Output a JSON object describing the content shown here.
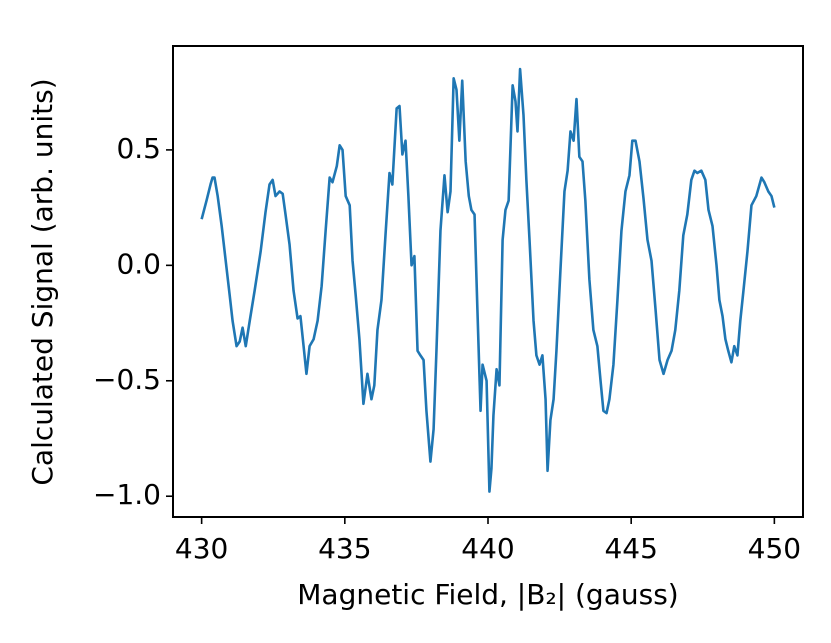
{
  "chart_data": {
    "type": "line",
    "xlabel": "Magnetic Field, |B₂| (gauss)",
    "ylabel": "Calculated Signal (arb. units)",
    "color": "#1f77b4",
    "grid": false,
    "xlim": [
      429,
      451
    ],
    "ylim": [
      -1.09,
      0.95
    ],
    "xticks": [
      430,
      435,
      440,
      445,
      450
    ],
    "yticks": [
      {
        "value": -1.0,
        "label": "−1.0"
      },
      {
        "value": -0.5,
        "label": "−0.5"
      },
      {
        "value": 0.0,
        "label": "0.0"
      },
      0.5
    ],
    "x": [
      430.0,
      430.17,
      430.31,
      430.38,
      430.45,
      430.56,
      430.7,
      430.84,
      430.98,
      431.08,
      431.22,
      431.33,
      431.43,
      431.54,
      431.68,
      431.85,
      432.06,
      432.23,
      432.37,
      432.48,
      432.58,
      432.72,
      432.83,
      432.93,
      433.07,
      433.21,
      433.35,
      433.45,
      433.56,
      433.66,
      433.77,
      433.91,
      434.05,
      434.19,
      434.33,
      434.47,
      434.57,
      434.72,
      434.82,
      434.92,
      435.03,
      435.17,
      435.27,
      435.38,
      435.51,
      435.65,
      435.79,
      435.93,
      436.03,
      436.14,
      436.28,
      436.42,
      436.56,
      436.66,
      436.81,
      436.91,
      437.01,
      437.12,
      437.22,
      437.33,
      437.43,
      437.54,
      437.64,
      437.75,
      437.85,
      437.99,
      438.1,
      438.2,
      438.34,
      438.48,
      438.59,
      438.69,
      438.8,
      438.9,
      439.0,
      439.1,
      439.22,
      439.33,
      439.42,
      439.53,
      439.63,
      439.74,
      439.81,
      439.95,
      440.05,
      440.12,
      440.19,
      440.3,
      440.4,
      440.51,
      440.61,
      440.72,
      440.86,
      440.96,
      441.03,
      441.12,
      441.24,
      441.34,
      441.45,
      441.59,
      441.69,
      441.8,
      441.9,
      442.01,
      442.08,
      442.18,
      442.29,
      442.39,
      442.53,
      442.67,
      442.78,
      442.88,
      442.99,
      443.09,
      443.19,
      443.3,
      443.4,
      443.54,
      443.68,
      443.82,
      443.93,
      444.03,
      444.14,
      444.24,
      444.38,
      444.52,
      444.66,
      444.8,
      444.94,
      445.04,
      445.15,
      445.29,
      445.43,
      445.57,
      445.71,
      445.85,
      445.99,
      446.13,
      446.27,
      446.41,
      446.54,
      446.68,
      446.82,
      446.96,
      447.1,
      447.21,
      447.31,
      447.45,
      447.59,
      447.7,
      447.84,
      447.98,
      448.08,
      448.19,
      448.29,
      448.39,
      448.5,
      448.6,
      448.71,
      448.81,
      448.92,
      449.06,
      449.2,
      449.37,
      449.55,
      449.65,
      449.79,
      449.9,
      450.0
    ],
    "values": [
      0.2,
      0.28,
      0.35,
      0.38,
      0.38,
      0.3,
      0.17,
      0.02,
      -0.13,
      -0.24,
      -0.35,
      -0.33,
      -0.27,
      -0.35,
      -0.24,
      -0.11,
      0.06,
      0.23,
      0.35,
      0.37,
      0.3,
      0.32,
      0.31,
      0.22,
      0.09,
      -0.11,
      -0.23,
      -0.22,
      -0.35,
      -0.47,
      -0.35,
      -0.32,
      -0.24,
      -0.09,
      0.15,
      0.38,
      0.36,
      0.43,
      0.52,
      0.5,
      0.3,
      0.26,
      0.02,
      -0.13,
      -0.32,
      -0.6,
      -0.47,
      -0.58,
      -0.52,
      -0.28,
      -0.15,
      0.13,
      0.4,
      0.35,
      0.68,
      0.69,
      0.48,
      0.54,
      0.3,
      0.0,
      0.04,
      -0.37,
      -0.39,
      -0.41,
      -0.63,
      -0.85,
      -0.71,
      -0.37,
      0.15,
      0.39,
      0.23,
      0.32,
      0.81,
      0.76,
      0.54,
      0.8,
      0.45,
      0.3,
      0.24,
      0.22,
      -0.19,
      -0.63,
      -0.43,
      -0.5,
      -0.98,
      -0.88,
      -0.65,
      -0.45,
      -0.52,
      0.11,
      0.24,
      0.28,
      0.78,
      0.71,
      0.58,
      0.85,
      0.65,
      0.37,
      0.11,
      -0.24,
      -0.39,
      -0.43,
      -0.39,
      -0.58,
      -0.89,
      -0.67,
      -0.58,
      -0.37,
      -0.02,
      0.32,
      0.41,
      0.58,
      0.54,
      0.72,
      0.47,
      0.45,
      0.28,
      -0.06,
      -0.28,
      -0.35,
      -0.5,
      -0.63,
      -0.64,
      -0.58,
      -0.43,
      -0.15,
      0.15,
      0.32,
      0.39,
      0.54,
      0.54,
      0.45,
      0.29,
      0.11,
      0.02,
      -0.19,
      -0.41,
      -0.47,
      -0.41,
      -0.37,
      -0.28,
      -0.11,
      0.13,
      0.22,
      0.37,
      0.41,
      0.4,
      0.41,
      0.37,
      0.24,
      0.17,
      0.0,
      -0.15,
      -0.22,
      -0.32,
      -0.37,
      -0.42,
      -0.35,
      -0.39,
      -0.24,
      -0.11,
      0.06,
      0.26,
      0.3,
      0.38,
      0.36,
      0.32,
      0.3,
      0.25
    ]
  }
}
